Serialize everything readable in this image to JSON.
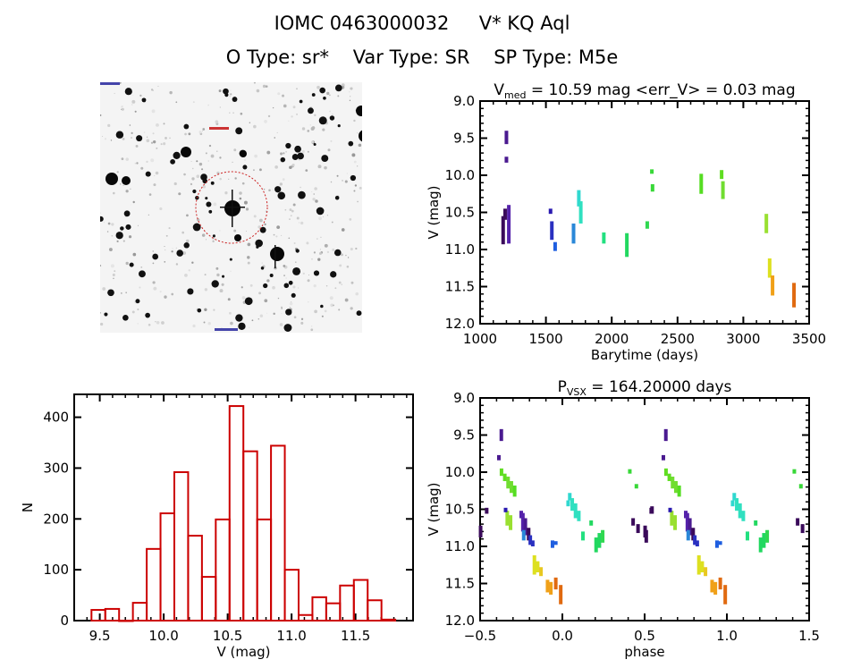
{
  "header": {
    "object_id": "IOMC 0463000032",
    "star_name": "V* KQ Aql",
    "otype_label": "O Type: sr*",
    "vartype_label": "Var Type: SR",
    "sptype_label": "SP Type: M5e"
  },
  "finder_chart": {
    "description": "DSS-style grayscale star field with red circle marking target",
    "marker_color": "#cc2222"
  },
  "chart_data": [
    {
      "id": "light_curve",
      "type": "scatter",
      "title_main": "V",
      "title_sub": "med",
      "title_rest": " = 10.59 mag <err_V> = 0.03 mag",
      "xlabel": "Barytime (days)",
      "ylabel": "V (mag)",
      "xlim": [
        1000,
        3500
      ],
      "ylim": [
        12.0,
        9.0
      ],
      "y_inverted": true,
      "xticks": [
        "1000",
        "1500",
        "2000",
        "2500",
        "3000",
        "3500"
      ],
      "xtick_values": [
        1000,
        1500,
        2000,
        2500,
        3000,
        3500
      ],
      "yticks": [
        "9.0",
        "9.5",
        "10.0",
        "10.5",
        "11.0",
        "11.5",
        "12.0"
      ],
      "ytick_values": [
        9.0,
        9.5,
        10.0,
        10.5,
        11.0,
        11.5,
        12.0
      ],
      "segments": [
        {
          "t": 1175,
          "v1": 10.55,
          "v2": 10.93,
          "color": "#3a0a5a"
        },
        {
          "t": 1190,
          "v1": 10.45,
          "v2": 10.6,
          "color": "#3a0a5a"
        },
        {
          "t": 1200,
          "v1": 9.4,
          "v2": 9.58,
          "color": "#4a1a90"
        },
        {
          "t": 1200,
          "v1": 9.75,
          "v2": 9.83,
          "color": "#4a1a90"
        },
        {
          "t": 1218,
          "v1": 10.4,
          "v2": 10.92,
          "color": "#5522aa"
        },
        {
          "t": 1535,
          "v1": 10.45,
          "v2": 10.52,
          "color": "#2a1ab0"
        },
        {
          "t": 1545,
          "v1": 10.62,
          "v2": 10.87,
          "color": "#2a30c0"
        },
        {
          "t": 1570,
          "v1": 10.9,
          "v2": 11.02,
          "color": "#1e5ee0"
        },
        {
          "t": 1710,
          "v1": 10.65,
          "v2": 10.92,
          "color": "#2a88d8"
        },
        {
          "t": 1750,
          "v1": 10.2,
          "v2": 10.42,
          "color": "#30d8d0"
        },
        {
          "t": 1765,
          "v1": 10.35,
          "v2": 10.65,
          "color": "#30e0c0"
        },
        {
          "t": 1940,
          "v1": 10.77,
          "v2": 10.92,
          "color": "#22e080"
        },
        {
          "t": 2115,
          "v1": 10.78,
          "v2": 11.1,
          "color": "#22d860"
        },
        {
          "t": 2270,
          "v1": 10.62,
          "v2": 10.72,
          "color": "#30d850"
        },
        {
          "t": 2305,
          "v1": 9.92,
          "v2": 9.98,
          "color": "#38d838"
        },
        {
          "t": 2310,
          "v1": 10.12,
          "v2": 10.22,
          "color": "#38d838"
        },
        {
          "t": 2680,
          "v1": 9.98,
          "v2": 10.25,
          "color": "#55dd22"
        },
        {
          "t": 2835,
          "v1": 9.93,
          "v2": 10.05,
          "color": "#60dd22"
        },
        {
          "t": 2845,
          "v1": 10.08,
          "v2": 10.32,
          "color": "#70dd30"
        },
        {
          "t": 3175,
          "v1": 10.52,
          "v2": 10.78,
          "color": "#99e030"
        },
        {
          "t": 3200,
          "v1": 11.12,
          "v2": 11.38,
          "color": "#dde020"
        },
        {
          "t": 3222,
          "v1": 11.35,
          "v2": 11.62,
          "color": "#f0a018"
        },
        {
          "t": 3385,
          "v1": 11.45,
          "v2": 11.78,
          "color": "#e06a10"
        }
      ]
    },
    {
      "id": "histogram",
      "type": "bar",
      "xlabel": "V (mag)",
      "ylabel": "N",
      "xlim": [
        9.3,
        11.95
      ],
      "ylim": [
        0,
        445
      ],
      "xticks": [
        "9.5",
        "10.0",
        "10.5",
        "11.0",
        "11.5"
      ],
      "xtick_values": [
        9.5,
        10.0,
        10.5,
        11.0,
        11.5
      ],
      "yticks": [
        "0",
        "100",
        "200",
        "300",
        "400"
      ],
      "ytick_values": [
        0,
        100,
        200,
        300,
        400
      ],
      "bar_color": "#cc0000",
      "bin_width": 0.108,
      "bin_starts": [
        9.435,
        9.543,
        9.651,
        9.759,
        9.867,
        9.975,
        10.083,
        10.191,
        10.299,
        10.407,
        10.515,
        10.623,
        10.731,
        10.839,
        10.947,
        11.055,
        11.163,
        11.271,
        11.379,
        11.487,
        11.595,
        11.703
      ],
      "values": [
        21,
        23,
        0,
        35,
        141,
        211,
        292,
        167,
        86,
        199,
        422,
        333,
        199,
        344,
        100,
        11,
        46,
        34,
        69,
        80,
        40,
        2
      ]
    },
    {
      "id": "phase_curve",
      "type": "scatter",
      "title_main": "P",
      "title_sub": "VSX",
      "title_rest": " = 164.20000 days",
      "period_days": 164.2,
      "xlabel": "phase",
      "ylabel": "V (mag)",
      "xlim": [
        -0.5,
        1.5
      ],
      "ylim": [
        12.0,
        9.0
      ],
      "y_inverted": true,
      "xticks": [
        "−0.5",
        "0.0",
        "0.5",
        "1.0",
        "1.5"
      ],
      "xtick_values": [
        -0.5,
        0.0,
        0.5,
        1.0,
        1.5
      ],
      "yticks": [
        "9.0",
        "9.5",
        "10.0",
        "10.5",
        "11.0",
        "11.5",
        "12.0"
      ],
      "ytick_values": [
        9.0,
        9.5,
        10.0,
        10.5,
        11.0,
        11.5,
        12.0
      ],
      "segments": [
        {
          "p": -0.371,
          "v1": 9.42,
          "v2": 9.58,
          "color": "#4a1a90"
        },
        {
          "p": -0.386,
          "v1": 9.77,
          "v2": 9.84,
          "color": "#4a1a90"
        },
        {
          "p": -0.497,
          "v1": 10.72,
          "v2": 10.88,
          "color": "#3a0a5a"
        },
        {
          "p": -0.46,
          "v1": 10.48,
          "v2": 10.56,
          "color": "#3a0a5a"
        },
        {
          "p": -0.37,
          "v1": 9.95,
          "v2": 10.05,
          "color": "#60dd22"
        },
        {
          "p": -0.35,
          "v1": 10.02,
          "v2": 10.12,
          "color": "#60dd22"
        },
        {
          "p": -0.33,
          "v1": 10.06,
          "v2": 10.22,
          "color": "#70dd30"
        },
        {
          "p": -0.31,
          "v1": 10.12,
          "v2": 10.28,
          "color": "#70dd30"
        },
        {
          "p": -0.29,
          "v1": 10.18,
          "v2": 10.33,
          "color": "#55dd22"
        },
        {
          "p": -0.335,
          "v1": 10.52,
          "v2": 10.72,
          "color": "#99e030"
        },
        {
          "p": -0.315,
          "v1": 10.58,
          "v2": 10.78,
          "color": "#99e030"
        },
        {
          "p": -0.345,
          "v1": 10.48,
          "v2": 10.54,
          "color": "#2a1ab0"
        },
        {
          "p": -0.25,
          "v1": 10.52,
          "v2": 10.62,
          "color": "#5522aa"
        },
        {
          "p": -0.24,
          "v1": 10.55,
          "v2": 10.8,
          "color": "#5522aa"
        },
        {
          "p": -0.225,
          "v1": 10.62,
          "v2": 10.85,
          "color": "#4a1a90"
        },
        {
          "p": -0.205,
          "v1": 10.75,
          "v2": 10.92,
          "color": "#3a0a5a"
        },
        {
          "p": -0.195,
          "v1": 10.85,
          "v2": 10.98,
          "color": "#2a30c0"
        },
        {
          "p": -0.235,
          "v1": 10.78,
          "v2": 10.92,
          "color": "#2a88d8"
        },
        {
          "p": -0.18,
          "v1": 10.92,
          "v2": 11.0,
          "color": "#2a30c0"
        },
        {
          "p": -0.06,
          "v1": 10.92,
          "v2": 11.02,
          "color": "#1e5ee0"
        },
        {
          "p": -0.04,
          "v1": 10.93,
          "v2": 10.98,
          "color": "#1e5ee0"
        },
        {
          "p": -0.17,
          "v1": 11.12,
          "v2": 11.38,
          "color": "#dde020"
        },
        {
          "p": -0.15,
          "v1": 11.2,
          "v2": 11.35,
          "color": "#dde020"
        },
        {
          "p": -0.13,
          "v1": 11.28,
          "v2": 11.4,
          "color": "#e8c820"
        },
        {
          "p": -0.09,
          "v1": 11.45,
          "v2": 11.62,
          "color": "#f0a018"
        },
        {
          "p": -0.07,
          "v1": 11.48,
          "v2": 11.65,
          "color": "#f0a018"
        },
        {
          "p": -0.04,
          "v1": 11.42,
          "v2": 11.58,
          "color": "#e06a10"
        },
        {
          "p": -0.01,
          "v1": 11.52,
          "v2": 11.78,
          "color": "#e06a10"
        },
        {
          "p": 0.035,
          "v1": 10.38,
          "v2": 10.46,
          "color": "#30d8d0"
        },
        {
          "p": 0.045,
          "v1": 10.28,
          "v2": 10.38,
          "color": "#30d8d0"
        },
        {
          "p": 0.06,
          "v1": 10.35,
          "v2": 10.52,
          "color": "#30e0c0"
        },
        {
          "p": 0.08,
          "v1": 10.42,
          "v2": 10.62,
          "color": "#30e0c0"
        },
        {
          "p": 0.1,
          "v1": 10.52,
          "v2": 10.66,
          "color": "#30e0c0"
        },
        {
          "p": 0.125,
          "v1": 10.8,
          "v2": 10.92,
          "color": "#22e080"
        },
        {
          "p": 0.175,
          "v1": 10.65,
          "v2": 10.72,
          "color": "#22d860"
        },
        {
          "p": 0.205,
          "v1": 10.88,
          "v2": 11.08,
          "color": "#22d860"
        },
        {
          "p": 0.225,
          "v1": 10.82,
          "v2": 11.02,
          "color": "#22d860"
        },
        {
          "p": 0.245,
          "v1": 10.78,
          "v2": 10.95,
          "color": "#30d850"
        },
        {
          "p": 0.41,
          "v1": 9.96,
          "v2": 10.02,
          "color": "#38d838"
        },
        {
          "p": 0.45,
          "v1": 10.16,
          "v2": 10.22,
          "color": "#38d838"
        },
        {
          "p": 0.43,
          "v1": 10.62,
          "v2": 10.72,
          "color": "#3a0a5a"
        },
        {
          "p": 0.46,
          "v1": 10.7,
          "v2": 10.82,
          "color": "#3a0a5a"
        },
        {
          "p": 0.51,
          "v1": 10.78,
          "v2": 10.95,
          "color": "#3a0a5a"
        },
        {
          "p": 0.545,
          "v1": 10.46,
          "v2": 10.56,
          "color": "#3a0a5a"
        }
      ]
    }
  ]
}
